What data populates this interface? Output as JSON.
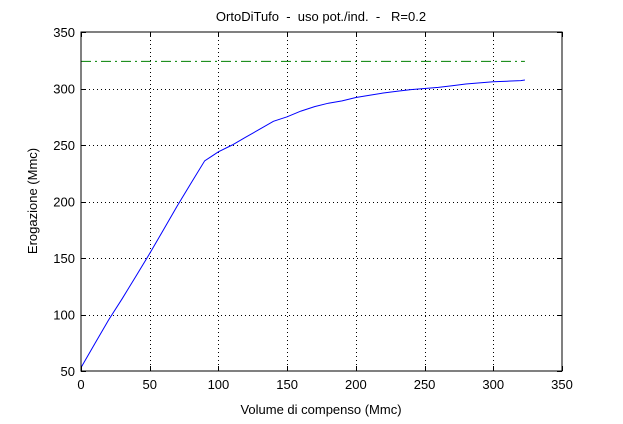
{
  "chart_data": {
    "type": "line",
    "title": "OrtoDiTufo  -  uso pot./ind.  -   R=0.2",
    "xlabel": "Volume di compenso (Mmc)",
    "ylabel": "Erogazione (Mmc)",
    "xlim": [
      0,
      350
    ],
    "ylim": [
      50,
      350
    ],
    "xticks": [
      0,
      50,
      100,
      150,
      200,
      250,
      300,
      350
    ],
    "yticks": [
      50,
      100,
      150,
      200,
      250,
      300,
      350
    ],
    "xtick_labels": [
      "0",
      "50",
      "100",
      "150",
      "200",
      "250",
      "300",
      "350"
    ],
    "ytick_labels": [
      "50",
      "100",
      "150",
      "200",
      "250",
      "300",
      "350"
    ],
    "grid": true,
    "series": [
      {
        "style": "solid",
        "color": "#0000ff",
        "x": [
          0,
          10,
          20,
          30,
          40,
          50,
          60,
          70,
          80,
          90,
          95,
          100,
          110,
          120,
          130,
          140,
          150,
          160,
          170,
          180,
          190,
          200,
          210,
          220,
          230,
          240,
          250,
          260,
          270,
          280,
          290,
          300,
          310,
          320,
          323
        ],
        "y": [
          53,
          74,
          95,
          114,
          134,
          154,
          175,
          196,
          216,
          236,
          240,
          244,
          250,
          257,
          264,
          271,
          275,
          280,
          284,
          287,
          289,
          292,
          294,
          296,
          297.5,
          299,
          300,
          301,
          302.5,
          304,
          305,
          306,
          306.5,
          307,
          307.5
        ]
      },
      {
        "style": "dashdot",
        "color": "#008000",
        "x": [
          0,
          323
        ],
        "y": [
          324,
          324
        ]
      }
    ]
  }
}
